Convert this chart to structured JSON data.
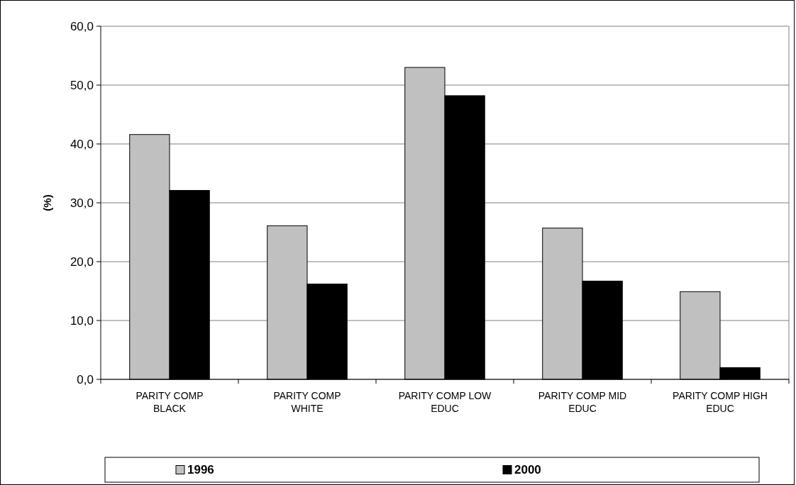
{
  "chart_data": {
    "type": "bar",
    "ylabel": "(%)",
    "categories": [
      "PARITY COMP BLACK",
      "PARITY COMP WHITE",
      "PARITY COMP LOW EDUC",
      "PARITY COMP MID EDUC",
      "PARITY COMP HIGH EDUC"
    ],
    "series": [
      {
        "name": "1996",
        "color": "#c0c0c0",
        "values": [
          41.6,
          26.1,
          53.0,
          25.7,
          14.9
        ]
      },
      {
        "name": "2000",
        "color": "#000000",
        "values": [
          32.1,
          16.2,
          48.2,
          16.7,
          2.0
        ]
      }
    ],
    "ylim": [
      0,
      60
    ],
    "yticks": [
      {
        "value": 0,
        "label": "0,0"
      },
      {
        "value": 10,
        "label": "10,0"
      },
      {
        "value": 20,
        "label": "20,0"
      },
      {
        "value": 30,
        "label": "30,0"
      },
      {
        "value": 40,
        "label": "40,0"
      },
      {
        "value": 50,
        "label": "50,0"
      },
      {
        "value": 60,
        "label": "60,0"
      }
    ],
    "grid": "y",
    "legend": "bottom"
  }
}
